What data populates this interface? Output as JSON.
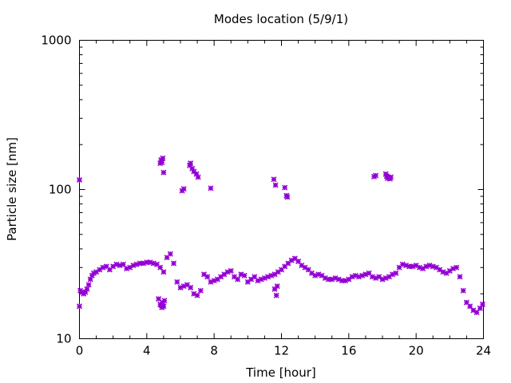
{
  "chart_data": {
    "type": "scatter",
    "title": "Modes location (5/9/1)",
    "xlabel": "Time [hour]",
    "ylabel": "Particle size [nm]",
    "xlim": [
      0,
      24
    ],
    "ylim": [
      10,
      1000
    ],
    "yscale": "log",
    "grid": false,
    "marker": "asterisk",
    "color": "#9400d3",
    "xticks": [
      0,
      4,
      8,
      12,
      16,
      20,
      24
    ],
    "xtick_labels": [
      "0",
      "4",
      "8",
      "12",
      "16",
      "20",
      "24"
    ],
    "yticks": [
      10,
      100,
      1000
    ],
    "ytick_labels": [
      "10",
      "100",
      "1000"
    ],
    "series": [
      {
        "x": [
          0.0,
          0.05,
          0.15,
          0.25,
          0.35,
          0.45,
          0.55,
          0.65,
          0.75,
          0.85,
          1.0,
          1.2,
          1.4,
          1.6,
          1.8,
          2.0,
          2.2,
          2.4,
          2.6,
          2.8,
          3.0,
          3.2,
          3.4,
          3.6,
          3.8,
          4.0,
          4.2,
          4.4,
          4.6,
          4.8,
          5.0,
          5.2,
          5.4,
          5.6,
          5.8,
          6.0,
          6.2,
          6.4,
          6.6,
          6.8,
          7.0,
          7.2,
          7.4,
          7.6,
          7.8,
          8.0,
          8.2,
          8.4,
          8.6,
          8.8,
          9.0,
          9.2,
          9.4,
          9.6,
          9.8,
          10.0,
          10.2,
          10.4,
          10.6,
          10.8,
          11.0,
          11.2,
          11.4,
          11.6,
          11.8,
          12.0,
          12.2,
          12.4,
          12.6,
          12.8,
          13.0,
          13.2,
          13.4,
          13.6,
          13.8,
          14.0,
          14.2,
          14.4,
          14.6,
          14.8,
          15.0,
          15.2,
          15.4,
          15.6,
          15.8,
          16.0,
          16.2,
          16.4,
          16.6,
          16.8,
          17.0,
          17.2,
          17.4,
          17.6,
          17.8,
          18.0,
          18.2,
          18.4,
          18.6,
          18.8,
          19.0,
          19.2,
          19.4,
          19.6,
          19.8,
          20.0,
          20.2,
          20.4,
          20.6,
          20.8,
          21.0,
          21.2,
          21.4,
          21.6,
          21.8,
          22.0,
          22.2,
          22.4,
          22.6,
          22.8,
          23.0,
          23.2,
          23.4,
          23.6,
          23.8,
          23.95
        ],
        "y": [
          16.5,
          21,
          20.5,
          20,
          20.5,
          21.5,
          23,
          25,
          26.5,
          27.5,
          28,
          29,
          30,
          30.5,
          29,
          30.5,
          31.5,
          31,
          31.5,
          29.5,
          30,
          31,
          31.5,
          32,
          32,
          32.5,
          32.5,
          32,
          31.5,
          30,
          28,
          35,
          37,
          32,
          24,
          22,
          22.5,
          23,
          22,
          20,
          19.5,
          21,
          27,
          26,
          24,
          24.5,
          25,
          26,
          27,
          28,
          28.5,
          26,
          25,
          27,
          26.5,
          24,
          25,
          26,
          24.5,
          25,
          25.5,
          26,
          26.5,
          27,
          28,
          29,
          30.5,
          32,
          33.5,
          34.5,
          33,
          31,
          30,
          29,
          27.5,
          26.5,
          27,
          26.5,
          25.5,
          25,
          25,
          25.5,
          25,
          24.5,
          24.5,
          25,
          26,
          26.5,
          26,
          26.5,
          27,
          27.5,
          26,
          25.5,
          26,
          25,
          25.5,
          26,
          27,
          27.5,
          30,
          31.5,
          31,
          30.5,
          30.5,
          31,
          30,
          29.5,
          30.5,
          31,
          30.5,
          30,
          29,
          28,
          27.5,
          28.5,
          29.5,
          30,
          26,
          21,
          17.5,
          16.5,
          15.5,
          15,
          16,
          17
        ]
      },
      {
        "x": [
          0.0,
          4.8,
          4.85,
          4.95,
          5.0,
          4.9,
          6.1,
          6.2,
          6.55,
          6.6,
          6.7,
          6.8,
          6.95,
          7.05,
          7.8,
          11.55,
          11.65,
          12.2,
          12.3,
          12.35,
          17.5,
          17.6,
          18.2,
          18.25,
          18.3,
          18.35,
          18.45,
          18.5
        ],
        "y": [
          116,
          150,
          158,
          162,
          130,
          152,
          98,
          101,
          145,
          150,
          138,
          132,
          127,
          121,
          102,
          117,
          107,
          103,
          91,
          89,
          122,
          124,
          127,
          123,
          119,
          121,
          118,
          121
        ]
      },
      {
        "x": [
          4.7,
          4.8,
          4.9,
          5.0,
          4.85,
          4.95,
          5.05,
          11.6,
          11.7,
          11.75
        ],
        "y": [
          18.5,
          17,
          16.2,
          16.5,
          16.8,
          17.5,
          18,
          21.5,
          19.5,
          22.5
        ]
      }
    ]
  }
}
